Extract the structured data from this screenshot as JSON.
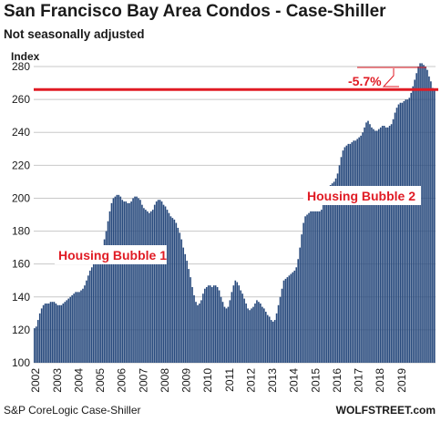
{
  "chart_data": {
    "type": "bar",
    "title": "San Francisco Bay Area Condos - Case-Shiller",
    "subtitle": "Not seasonally adjusted",
    "ylabel": "Index",
    "xlabel": "",
    "ylim": [
      100,
      285
    ],
    "yticks": [
      100,
      120,
      140,
      160,
      180,
      200,
      220,
      240,
      260,
      280
    ],
    "xtick_labels": [
      "2002",
      "2003",
      "2004",
      "2005",
      "2006",
      "2007",
      "2008",
      "2009",
      "2010",
      "2011",
      "2012",
      "2013",
      "2014",
      "2015",
      "2016",
      "2017",
      "2018",
      "2019"
    ],
    "x_start": "2002-01",
    "frequency": "monthly",
    "grid": "horizontal",
    "bar_color": "#284a7d",
    "values": [
      121,
      122,
      126,
      130,
      133,
      135,
      136,
      136,
      136,
      137,
      137,
      137,
      136,
      135,
      135,
      135,
      136,
      137,
      138,
      139,
      140,
      141,
      142,
      143,
      143,
      143,
      144,
      145,
      147,
      150,
      153,
      156,
      158,
      160,
      161,
      162,
      163,
      166,
      170,
      175,
      180,
      186,
      192,
      197,
      200,
      201,
      202,
      202,
      201,
      199,
      198,
      198,
      197,
      197,
      198,
      200,
      201,
      201,
      200,
      199,
      196,
      194,
      193,
      192,
      191,
      192,
      193,
      196,
      198,
      199,
      199,
      198,
      196,
      195,
      193,
      191,
      189,
      188,
      187,
      185,
      182,
      179,
      175,
      170,
      166,
      162,
      157,
      152,
      146,
      141,
      137,
      135,
      136,
      138,
      142,
      145,
      146,
      147,
      147,
      146,
      147,
      147,
      146,
      144,
      140,
      137,
      134,
      133,
      134,
      138,
      143,
      147,
      150,
      149,
      147,
      144,
      142,
      139,
      136,
      133,
      132,
      133,
      134,
      136,
      138,
      137,
      136,
      134,
      133,
      131,
      129,
      128,
      126,
      125,
      126,
      130,
      135,
      140,
      145,
      150,
      151,
      152,
      153,
      154,
      155,
      156,
      158,
      163,
      170,
      178,
      185,
      189,
      190,
      191,
      192,
      192,
      192,
      192,
      192,
      192,
      193,
      196,
      200,
      203,
      206,
      208,
      209,
      210,
      212,
      215,
      220,
      225,
      229,
      231,
      232,
      233,
      233,
      234,
      235,
      235,
      236,
      237,
      238,
      240,
      243,
      246,
      247,
      245,
      243,
      242,
      241,
      241,
      242,
      243,
      244,
      244,
      243,
      243,
      244,
      245,
      248,
      252,
      255,
      257,
      258,
      258,
      259,
      260,
      260,
      261,
      264,
      268,
      272,
      276,
      280,
      282,
      282,
      281,
      280,
      278,
      274,
      271,
      267,
      266
    ],
    "annotations": [
      {
        "text": "Housing Bubble 1"
      },
      {
        "text": "Housing Bubble 2"
      },
      {
        "text": "-5.7%"
      }
    ],
    "reference_line": {
      "value": 266,
      "color": "#e01b24"
    }
  },
  "footer": {
    "source": "S&P CoreLogic Case-Shiller",
    "brand": "WOLFSTREET.com"
  }
}
